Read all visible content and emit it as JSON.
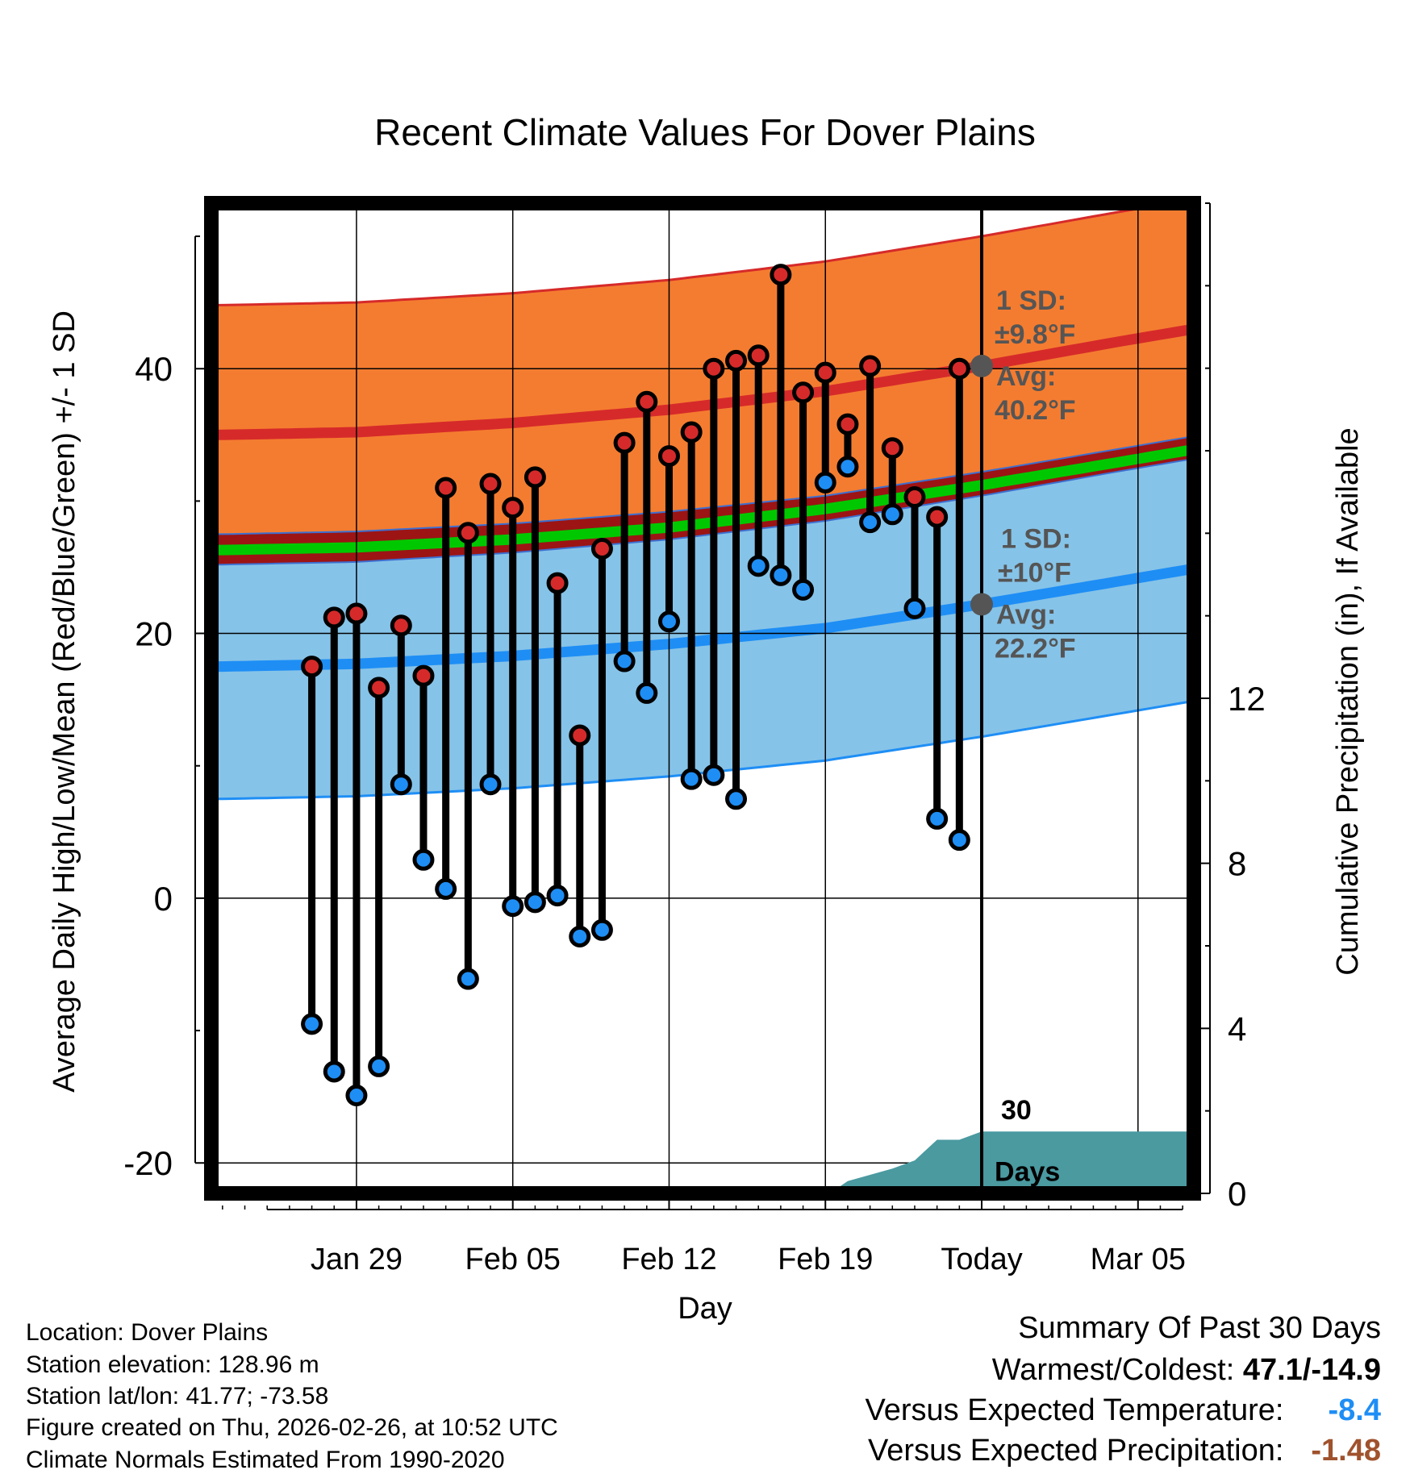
{
  "chart_data": {
    "type": "line",
    "title": "Recent Climate Values For Dover Plains",
    "xlabel": "Day",
    "ylabel_left": "Average Daily High/Low/Mean (Red/Blue/Green) +/- 1 SD",
    "ylabel_right": "Cumulative Precipitation (in), If Available",
    "x_range_days": [
      -34.5,
      9.5
    ],
    "ylim_left": [
      -22.3,
      52.5
    ],
    "ylim_right": [
      0,
      24
    ],
    "x_ticks": [
      {
        "day": -28,
        "label": "Jan 29"
      },
      {
        "day": -21,
        "label": "Feb 05"
      },
      {
        "day": -14,
        "label": "Feb 12"
      },
      {
        "day": -7,
        "label": "Feb 19"
      },
      {
        "day": 0,
        "label": "Today"
      },
      {
        "day": 7,
        "label": "Mar 05"
      }
    ],
    "y_ticks_left": [
      -20,
      0,
      20,
      40
    ],
    "y_ticks_right": [
      0,
      4,
      8,
      12
    ],
    "colors": {
      "high_band": "#f47c30",
      "high_line": "#d62a2a",
      "low_band": "#86c3e8",
      "low_line": "#1e8ef5",
      "mean_line": "#00c800",
      "dark_red": "#9c1414",
      "precip_fill": "#4a9aa0",
      "high_dot": "#d62a2a",
      "low_dot": "#1e8ef5",
      "annotation": "#555555"
    },
    "normal_high": [
      [
        -34,
        35.0
      ],
      [
        -28,
        35.2
      ],
      [
        -21,
        35.9
      ],
      [
        -14,
        36.9
      ],
      [
        -7,
        38.3
      ],
      [
        0,
        40.2
      ],
      [
        6,
        42.0
      ],
      [
        9.5,
        43.0
      ]
    ],
    "normal_high_sd": 9.8,
    "normal_low": [
      [
        -34,
        17.5
      ],
      [
        -28,
        17.7
      ],
      [
        -21,
        18.3
      ],
      [
        -14,
        19.2
      ],
      [
        -7,
        20.4
      ],
      [
        0,
        22.2
      ],
      [
        6,
        23.9
      ],
      [
        9.5,
        24.9
      ]
    ],
    "normal_low_sd": 10,
    "normal_mean": [
      [
        -34,
        26.3
      ],
      [
        -28,
        26.5
      ],
      [
        -21,
        27.1
      ],
      [
        -14,
        28.0
      ],
      [
        -7,
        29.4
      ],
      [
        0,
        31.2
      ],
      [
        6,
        32.9
      ],
      [
        9.5,
        33.9
      ]
    ],
    "daily_days": [
      -30,
      -29,
      -28,
      -27,
      -26,
      -25,
      -24,
      -23,
      -22,
      -21,
      -20,
      -19,
      -18,
      -17,
      -16,
      -15,
      -14,
      -13,
      -12,
      -11,
      -10,
      -9,
      -8,
      -7,
      -6,
      -5,
      -4,
      -3,
      -2,
      -1
    ],
    "daily_highs": [
      17.5,
      21.2,
      21.5,
      15.9,
      20.6,
      16.8,
      31.0,
      27.6,
      31.3,
      29.5,
      31.8,
      23.8,
      12.3,
      26.4,
      34.4,
      37.5,
      33.4,
      35.2,
      40.0,
      40.6,
      41.0,
      47.1,
      38.2,
      39.7,
      35.8,
      40.2,
      34.0,
      30.3,
      28.8,
      40.0
    ],
    "daily_lows": [
      -9.5,
      -13.1,
      -14.9,
      -12.7,
      8.6,
      2.9,
      0.7,
      -6.1,
      8.6,
      -0.6,
      -0.3,
      0.2,
      -2.9,
      -2.4,
      17.9,
      15.5,
      20.9,
      9.0,
      9.3,
      7.5,
      25.1,
      24.4,
      23.3,
      31.4,
      32.6,
      28.4,
      29.0,
      21.9,
      6.0,
      4.4
    ],
    "precip_cumulative": [
      [
        -6.8,
        0.0
      ],
      [
        -6.0,
        0.3
      ],
      [
        -4.0,
        0.6
      ],
      [
        -3.0,
        0.8
      ],
      [
        -2.0,
        1.3
      ],
      [
        -1.0,
        1.3
      ],
      [
        0,
        1.5
      ],
      [
        9.5,
        1.5
      ]
    ],
    "today_day": 0,
    "annotations": {
      "high_sd_label": "1 SD:",
      "high_sd_value": "±9.8°F",
      "high_avg_label": "Avg:",
      "high_avg_value": "40.2°F",
      "low_sd_label": "1 SD:",
      "low_sd_value": "±10°F",
      "low_avg_label": "Avg:",
      "low_avg_value": "22.2°F",
      "days_number": "30",
      "days_label": "Days"
    }
  },
  "station_info": {
    "location": "Location: Dover Plains",
    "elevation": "Station elevation: 128.96 m",
    "latlon": "Station lat/lon: 41.77; -73.58",
    "created": "Figure created on Thu, 2026-02-26, at 10:52 UTC",
    "normals": "Climate Normals Estimated From 1990-2020"
  },
  "summary": {
    "title": "Summary Of Past 30 Days",
    "warmest_coldest_label": "Warmest/Coldest:",
    "warmest_coldest_value": "47.1/-14.9",
    "temp_label": "Versus Expected Temperature:",
    "temp_value": "-8.4",
    "temp_color": "#1e8ef5",
    "precip_label": "Versus Expected Precipitation:",
    "precip_value": "-1.48",
    "precip_color": "#a0522d"
  }
}
